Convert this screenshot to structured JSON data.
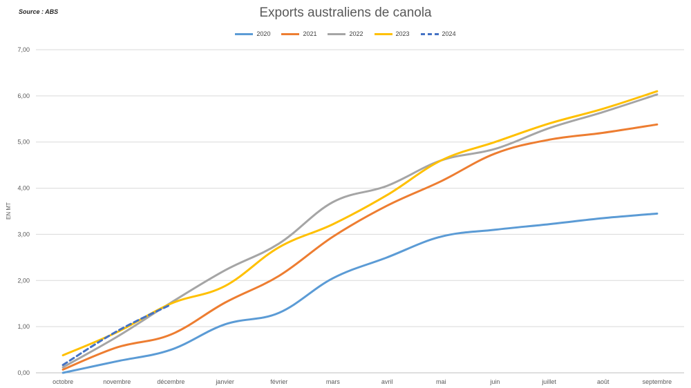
{
  "source_note": "Source : ABS",
  "chart_data": {
    "type": "line",
    "title": "Exports australiens de canola",
    "ylabel": "EN MT",
    "xlabel": "",
    "categories": [
      "octobre",
      "novembre",
      "décembre",
      "janvier",
      "février",
      "mars",
      "avril",
      "mai",
      "juin",
      "juillet",
      "août",
      "septembre"
    ],
    "ylim": [
      0,
      7
    ],
    "yticks": [
      "0,00",
      "1,00",
      "2,00",
      "3,00",
      "4,00",
      "5,00",
      "6,00",
      "7,00"
    ],
    "grid": true,
    "legend_position": "top-center",
    "series": [
      {
        "name": "2020",
        "color": "#5B9BD5",
        "dashed": false,
        "values": [
          0.0,
          0.25,
          0.5,
          1.05,
          1.3,
          2.05,
          2.5,
          2.95,
          3.1,
          3.22,
          3.35,
          3.45
        ]
      },
      {
        "name": "2021",
        "color": "#ED7D31",
        "dashed": false,
        "values": [
          0.07,
          0.55,
          0.83,
          1.52,
          2.1,
          2.95,
          3.62,
          4.15,
          4.75,
          5.05,
          5.2,
          5.38
        ]
      },
      {
        "name": "2022",
        "color": "#A5A5A5",
        "dashed": false,
        "values": [
          0.12,
          0.78,
          1.52,
          2.22,
          2.8,
          3.7,
          4.05,
          4.6,
          4.85,
          5.3,
          5.65,
          6.03
        ]
      },
      {
        "name": "2023",
        "color": "#FFC000",
        "dashed": false,
        "values": [
          0.38,
          0.88,
          1.5,
          1.88,
          2.72,
          3.22,
          3.85,
          4.6,
          5.0,
          5.4,
          5.72,
          6.1
        ]
      },
      {
        "name": "2024",
        "color": "#4472C4",
        "dashed": true,
        "values": [
          0.17,
          0.9,
          1.48,
          null,
          null,
          null,
          null,
          null,
          null,
          null,
          null,
          null
        ]
      }
    ]
  }
}
